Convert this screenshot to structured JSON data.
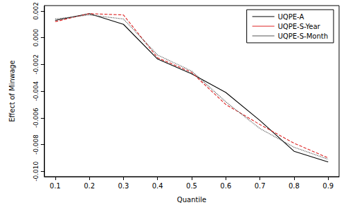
{
  "chart_data": {
    "type": "line",
    "x_label": "Quantile",
    "y_label": "Effect of Minwage",
    "x": [
      0.1,
      0.2,
      0.3,
      0.4,
      0.5,
      0.6,
      0.7,
      0.8,
      0.9
    ],
    "series": [
      {
        "name": "UQPE-A",
        "color": "#000000",
        "line_style": "solid",
        "values": [
          0.0013,
          0.0018,
          0.001,
          -0.0016,
          -0.0027,
          -0.0041,
          -0.0062,
          -0.0085,
          -0.0093
        ]
      },
      {
        "name": "UQPE-S-Year",
        "color": "#dd2222",
        "line_style": "dashed",
        "values": [
          0.0012,
          0.0018,
          0.0017,
          -0.0015,
          -0.0026,
          -0.005,
          -0.0065,
          -0.0079,
          -0.009
        ]
      },
      {
        "name": "UQPE-S-Month",
        "color": "#555555",
        "line_style": "dotted",
        "values": [
          0.0014,
          0.0017,
          0.0014,
          -0.0013,
          -0.0025,
          -0.0048,
          -0.0068,
          -0.0082,
          -0.0091
        ]
      }
    ],
    "xlim": [
      0.068,
      0.932
    ],
    "xticks": [
      0.1,
      0.2,
      0.3,
      0.4,
      0.5,
      0.6,
      0.7,
      0.8,
      0.9
    ],
    "ylim": [
      -0.0104,
      0.0024
    ],
    "yticks": [
      {
        "value": -0.01,
        "label": "-0.010"
      },
      {
        "value": -0.008,
        "label": "-0.008"
      },
      {
        "value": -0.006,
        "label": "-0.006"
      },
      {
        "value": -0.004,
        "label": "-0.004"
      },
      {
        "value": -0.002,
        "label": "-0.002"
      },
      {
        "value": 0.0,
        "label": "0.000"
      },
      {
        "value": 0.002,
        "label": "0.002"
      }
    ],
    "grid": false,
    "legend": "top-right"
  }
}
